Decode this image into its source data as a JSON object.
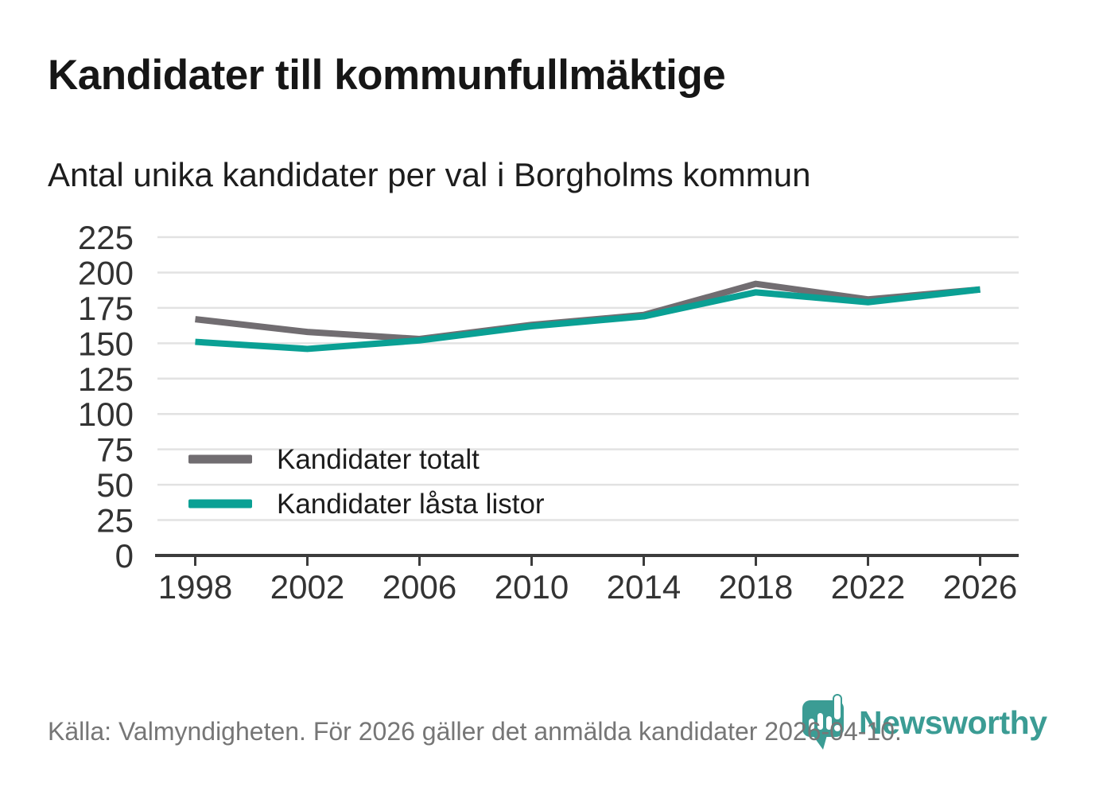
{
  "chart_data": {
    "type": "line",
    "title": "Kandidater till kommunfullmäktige",
    "subtitle": "Antal unika kandidater per val i Borgholms kommun",
    "x": [
      1998,
      2002,
      2006,
      2010,
      2014,
      2018,
      2022,
      2026
    ],
    "series": [
      {
        "name": "Kandidater totalt",
        "color": "#716d71",
        "values": [
          167,
          158,
          153,
          163,
          170,
          192,
          181,
          188
        ]
      },
      {
        "name": "Kandidater låsta listor",
        "color": "#0aa094",
        "values": [
          151,
          146,
          152,
          162,
          169,
          186,
          179,
          188
        ]
      }
    ],
    "ylim": [
      0,
      225
    ],
    "ytick_step": 25,
    "grid": true,
    "legend_position": "inside-left",
    "axis_color": "#3c3c3c",
    "grid_color": "#e2e2e2",
    "tick_label_color": "#333333",
    "legend_text_color": "#1c1c1c"
  },
  "footer": {
    "source_note": "Källa: Valmyndigheten. För 2026 gäller det anmälda kandidater 2026-04-10.",
    "logo_text": "Newsworthy",
    "logo_color": "#3b9c94"
  }
}
